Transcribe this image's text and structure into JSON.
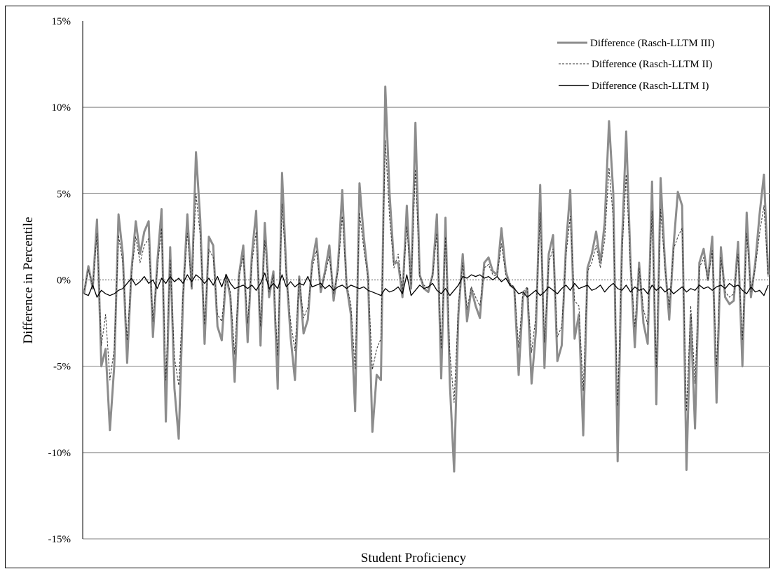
{
  "chart_data": {
    "type": "line",
    "title": "",
    "xlabel": "Student Proficiency",
    "ylabel": "Difference  in  Percentile",
    "ylim": [
      -15,
      15
    ],
    "yticks": [
      15,
      10,
      5,
      0,
      -5,
      -10,
      -15
    ],
    "ytick_labels": [
      "15%",
      "10%",
      "5%",
      "0%",
      "-5%",
      "-10%",
      "-15%"
    ],
    "grid": "horizontal",
    "legend_position": "top-right",
    "series": [
      {
        "name": "Difference (Rasch-LLTM III)",
        "color": "#8c8c8c",
        "style": "solid-thick",
        "values": [
          -0.8,
          0.8,
          -0.5,
          3.5,
          -5.0,
          -4.0,
          -8.7,
          -5.0,
          3.8,
          1.5,
          -4.8,
          0.5,
          3.4,
          1.5,
          2.8,
          3.4,
          -3.3,
          1.0,
          4.1,
          -8.2,
          1.9,
          -6.3,
          -9.2,
          -1.0,
          3.8,
          -0.5,
          7.4,
          3.5,
          -3.7,
          2.5,
          2.0,
          -2.7,
          -3.5,
          0.3,
          -1.0,
          -5.9,
          0.3,
          2.0,
          -3.6,
          1.5,
          4.0,
          -3.8,
          3.3,
          -1.0,
          0.5,
          -6.3,
          6.2,
          0.5,
          -3.3,
          -5.8,
          0.2,
          -3.1,
          -2.3,
          1.0,
          2.4,
          -0.7,
          0.5,
          2.0,
          -1.2,
          0.8,
          5.2,
          -0.3,
          -2.0,
          -7.6,
          5.6,
          2.5,
          0.2,
          -8.8,
          -5.5,
          -5.8,
          11.2,
          5.0,
          1.0,
          1.0,
          -1.0,
          4.3,
          -0.5,
          9.1,
          0.3,
          -0.5,
          -0.7,
          0.3,
          3.8,
          -5.7,
          3.6,
          -6.0,
          -11.1,
          -2.0,
          1.5,
          -2.4,
          -0.5,
          -1.5,
          -2.2,
          1.0,
          1.3,
          0.5,
          0.3,
          3.0,
          0.5,
          -0.3,
          -0.5,
          -5.5,
          -1.0,
          -0.5,
          -6.0,
          -3.0,
          5.5,
          -5.1,
          1.5,
          2.6,
          -4.7,
          -3.8,
          2.0,
          5.2,
          -3.4,
          -2.0,
          -9.0,
          0.7,
          1.5,
          2.8,
          1.0,
          3.3,
          9.2,
          5.0,
          -10.5,
          2.0,
          8.6,
          1.0,
          -3.9,
          1.0,
          -2.5,
          -3.7,
          5.7,
          -7.2,
          5.9,
          1.0,
          -2.3,
          2.0,
          5.1,
          4.3,
          -11.0,
          -2.1,
          -8.6,
          1.0,
          1.8,
          0.0,
          2.5,
          -7.1,
          1.9,
          -1.0,
          -1.4,
          -1.2,
          2.2,
          -5.0,
          3.9,
          -1.0,
          1.0,
          3.8,
          6.1,
          0.3
        ]
      },
      {
        "name": "Difference (Rasch-LLTM II)",
        "color": "#333333",
        "style": "dashed",
        "values": [
          -0.6,
          0.6,
          -0.4,
          2.7,
          -3.8,
          -2.0,
          -5.8,
          -4.0,
          2.6,
          1.0,
          -3.5,
          0.3,
          2.5,
          1.0,
          2.0,
          2.4,
          -2.4,
          0.6,
          3.0,
          -5.8,
          1.2,
          -4.5,
          -6.1,
          -0.7,
          2.7,
          -0.4,
          5.0,
          2.6,
          -2.6,
          1.8,
          1.3,
          -2.0,
          -2.4,
          0.2,
          -0.7,
          -4.3,
          0.2,
          1.4,
          -2.5,
          1.0,
          2.8,
          -2.7,
          2.3,
          -0.7,
          0.3,
          -4.4,
          4.4,
          0.3,
          -2.4,
          -4.1,
          0.1,
          -2.2,
          -1.6,
          0.7,
          1.7,
          -0.5,
          0.3,
          1.4,
          -0.8,
          0.5,
          3.7,
          -0.2,
          -1.4,
          -5.2,
          3.9,
          1.8,
          0.1,
          -5.2,
          -4.0,
          -3.4,
          8.1,
          3.6,
          0.7,
          1.5,
          -0.7,
          3.1,
          -0.3,
          6.4,
          0.2,
          -0.3,
          -0.5,
          0.2,
          2.7,
          -4.0,
          2.5,
          -4.2,
          -7.1,
          -1.4,
          1.0,
          -1.7,
          -0.4,
          -1.0,
          -1.5,
          0.7,
          0.9,
          0.3,
          0.2,
          2.1,
          0.3,
          -0.2,
          -0.4,
          -3.9,
          -0.7,
          -0.4,
          -4.2,
          -2.1,
          3.9,
          -3.6,
          1.0,
          1.8,
          -3.3,
          -2.7,
          1.4,
          3.7,
          -1.2,
          -1.5,
          -6.4,
          0.5,
          1.0,
          2.0,
          0.7,
          2.3,
          6.5,
          3.5,
          -7.3,
          1.4,
          6.1,
          0.7,
          -2.7,
          0.7,
          -1.7,
          -2.6,
          4.0,
          -5.1,
          4.1,
          0.7,
          -1.6,
          1.8,
          2.5,
          3.0,
          -7.6,
          -1.5,
          -6.0,
          0.7,
          1.3,
          0.0,
          1.7,
          -5.0,
          1.3,
          -0.7,
          -1.0,
          -0.8,
          1.5,
          -3.5,
          2.7,
          -0.7,
          0.7,
          2.7,
          4.3,
          0.2
        ]
      },
      {
        "name": "Difference (Rasch-LLTM I)",
        "color": "#000000",
        "style": "solid-thin",
        "values": [
          -0.8,
          -0.9,
          -0.3,
          -1.0,
          -0.6,
          -0.8,
          -0.9,
          -0.8,
          -0.6,
          -0.5,
          -0.2,
          0.1,
          -0.3,
          -0.1,
          0.2,
          -0.2,
          0.0,
          -0.5,
          0.1,
          -0.2,
          0.2,
          -0.1,
          0.1,
          -0.2,
          0.3,
          -0.1,
          0.3,
          0.1,
          -0.2,
          0.1,
          -0.3,
          0.2,
          -0.4,
          0.3,
          -0.2,
          -0.5,
          -0.4,
          -0.3,
          -0.5,
          -0.3,
          -0.6,
          -0.2,
          0.4,
          -0.5,
          -0.2,
          -0.5,
          0.3,
          -0.4,
          -0.1,
          -0.4,
          -0.2,
          -0.3,
          0.2,
          -0.4,
          -0.3,
          -0.2,
          -0.5,
          -0.3,
          -0.6,
          -0.4,
          -0.3,
          -0.5,
          -0.3,
          -0.4,
          -0.5,
          -0.4,
          -0.6,
          -0.7,
          -0.8,
          -0.9,
          -0.5,
          -0.7,
          -0.6,
          -0.4,
          -0.8,
          0.3,
          -0.9,
          -0.6,
          -0.3,
          -0.5,
          -0.4,
          -0.2,
          -0.6,
          -0.8,
          -0.5,
          -0.9,
          -0.6,
          -0.3,
          0.2,
          0.1,
          0.3,
          0.2,
          0.3,
          0.1,
          0.2,
          0.0,
          0.2,
          -0.1,
          0.1,
          -0.3,
          -0.5,
          -0.8,
          -0.7,
          -1.0,
          -0.8,
          -0.6,
          -0.9,
          -0.7,
          -0.4,
          -0.6,
          -0.8,
          -0.5,
          -0.3,
          -0.6,
          -0.2,
          -0.5,
          -0.4,
          -0.3,
          -0.6,
          -0.5,
          -0.3,
          -0.7,
          -0.4,
          -0.2,
          -0.5,
          -0.6,
          -0.3,
          -0.7,
          -0.4,
          -0.6,
          -0.5,
          -0.8,
          -0.3,
          -0.6,
          -0.4,
          -0.7,
          -0.5,
          -0.8,
          -0.6,
          -0.4,
          -0.7,
          -0.5,
          -0.6,
          -0.3,
          -0.5,
          -0.4,
          -0.6,
          -0.4,
          -0.3,
          -0.5,
          -0.2,
          -0.4,
          -0.3,
          -0.6,
          -0.8,
          -0.4,
          -0.7,
          -0.6,
          -0.9,
          -0.3
        ]
      }
    ]
  }
}
